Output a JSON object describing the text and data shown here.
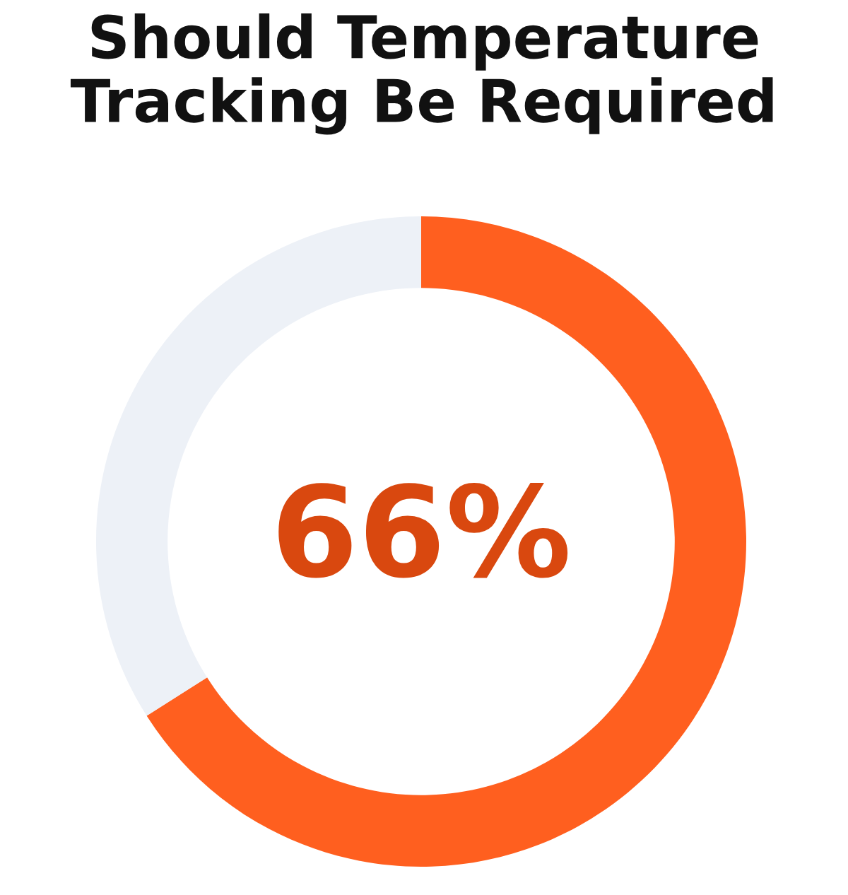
{
  "chart_data": {
    "type": "donut",
    "title": "Should Temperature\nTracking Be Required",
    "categories": [
      null,
      null
    ],
    "values": [
      66,
      34
    ],
    "colors": [
      "#ff5f1f",
      "#edf1f7"
    ],
    "value_labels": [
      "66%",
      null
    ]
  }
}
